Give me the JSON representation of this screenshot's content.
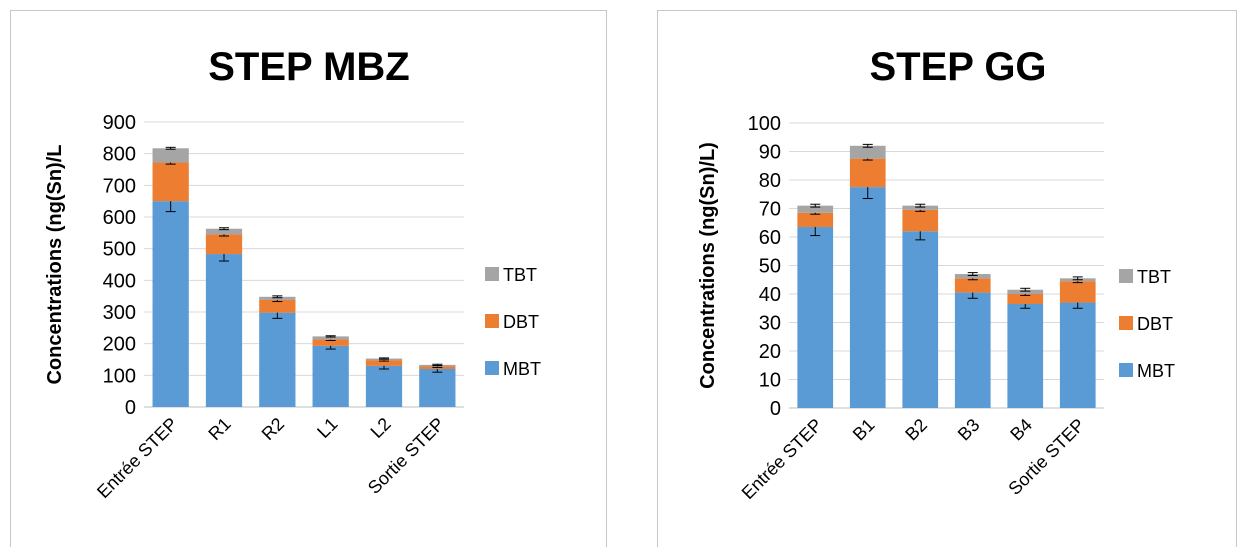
{
  "chart_data": [
    {
      "type": "bar",
      "stacked": true,
      "title": "STEP MBZ",
      "ylabel": "Concentrations (ng(Sn)/L",
      "xlabel": "",
      "ylim": [
        0,
        900
      ],
      "yticks": [
        0,
        100,
        200,
        300,
        400,
        500,
        600,
        700,
        800,
        900
      ],
      "grid": true,
      "legend_position": "right",
      "categories": [
        "Entrée STEP",
        "R1",
        "R2",
        "L1",
        "L2",
        "Sortie STEP"
      ],
      "series": [
        {
          "name": "MBT",
          "color": "#5b9bd5",
          "values": [
            650,
            483,
            298,
            193,
            130,
            120
          ],
          "errors": [
            33,
            22,
            18,
            10,
            10,
            10
          ]
        },
        {
          "name": "DBT",
          "color": "#ed7d31",
          "values": [
            122,
            62,
            40,
            20,
            18,
            8
          ],
          "errors": [
            5,
            5,
            5,
            3,
            3,
            3
          ]
        },
        {
          "name": "TBT",
          "color": "#a5a5a5",
          "values": [
            45,
            18,
            10,
            10,
            5,
            5
          ],
          "errors": [
            3,
            3,
            3,
            2,
            2,
            2
          ]
        }
      ],
      "legend_order": [
        "TBT",
        "DBT",
        "MBT"
      ]
    },
    {
      "type": "bar",
      "stacked": true,
      "title": "STEP GG",
      "ylabel": "Concentrations (ng(Sn)/L)",
      "xlabel": "",
      "ylim": [
        0,
        100
      ],
      "yticks": [
        0,
        10,
        20,
        30,
        40,
        50,
        60,
        70,
        80,
        90,
        100
      ],
      "grid": true,
      "legend_position": "right",
      "categories": [
        "Entrée STEP",
        "B1",
        "B2",
        "B3",
        "B4",
        "Sortie STEP"
      ],
      "series": [
        {
          "name": "MBT",
          "color": "#5b9bd5",
          "values": [
            63.5,
            77.5,
            62,
            40.5,
            36.5,
            37
          ],
          "errors": [
            3,
            4,
            3,
            2,
            1.5,
            2
          ]
        },
        {
          "name": "DBT",
          "color": "#ed7d31",
          "values": [
            5,
            10,
            7.5,
            5,
            3.5,
            7.5
          ],
          "errors": [
            0.5,
            0.5,
            0.5,
            0.5,
            0.5,
            0.5
          ]
        },
        {
          "name": "TBT",
          "color": "#a5a5a5",
          "values": [
            2.5,
            4.5,
            1.5,
            1.5,
            1.5,
            1
          ],
          "errors": [
            0.5,
            0.5,
            0.5,
            0.5,
            0.5,
            0.5
          ]
        }
      ],
      "legend_order": [
        "TBT",
        "DBT",
        "MBT"
      ]
    }
  ]
}
